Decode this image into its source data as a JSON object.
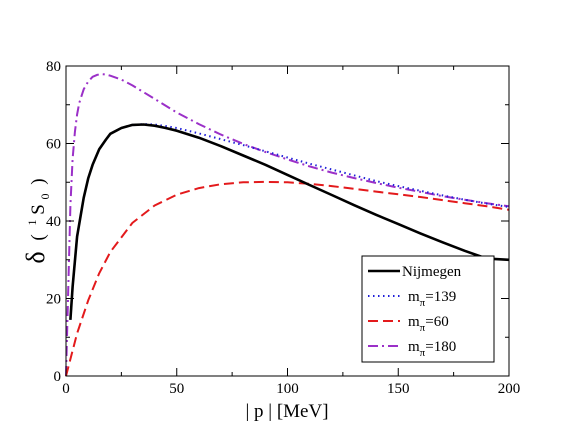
{
  "chart_data": {
    "type": "line",
    "xlabel": "| p |    [MeV]",
    "ylabel": {
      "symbol": "δ",
      "open": "(",
      "sup": "1",
      "letter": "S",
      "sub": "0",
      "close": ")"
    },
    "xlim": [
      0,
      200
    ],
    "ylim": [
      0,
      80
    ],
    "xticks": [
      "0",
      "50",
      "100",
      "150",
      "200"
    ],
    "yticks": [
      "0",
      "20",
      "40",
      "60",
      "80"
    ],
    "grid": false,
    "legend_placement": "bottom-right",
    "series": [
      {
        "name": "Nijmegen",
        "legend": {
          "base": "Nijmegen",
          "sub": ""
        },
        "color": "#000000",
        "style": "solid",
        "x": [
          2,
          3,
          5,
          8,
          10,
          12,
          15,
          18,
          20,
          25,
          30,
          35,
          40,
          45,
          50,
          60,
          70,
          80,
          90,
          100,
          110,
          120,
          130,
          140,
          150,
          160,
          170,
          180,
          190,
          200
        ],
        "y": [
          14.5,
          23,
          36,
          46,
          51,
          54.5,
          58.5,
          61,
          62.5,
          64,
          64.8,
          64.9,
          64.6,
          64,
          63.3,
          61.5,
          59.3,
          56.9,
          54.5,
          51.9,
          49.3,
          46.7,
          44.1,
          41.6,
          39.2,
          36.8,
          34.5,
          32.3,
          30.3,
          30
        ]
      },
      {
        "name": "mπ=139",
        "legend": {
          "base": "m",
          "sub": "π",
          "rest": "=139"
        },
        "color": "#1f1fd8",
        "style": "dotted",
        "x": [
          2,
          3,
          5,
          8,
          10,
          12,
          15,
          18,
          20,
          25,
          30,
          35,
          40,
          45,
          50,
          60,
          70,
          80,
          90,
          100,
          110,
          120,
          130,
          140,
          150,
          160,
          170,
          180,
          190,
          200
        ],
        "y": [
          14.5,
          23,
          36,
          46,
          51,
          54.5,
          58.5,
          61,
          62.5,
          64,
          64.8,
          65,
          64.9,
          64.5,
          64,
          62.6,
          61.1,
          59.6,
          58,
          56.4,
          54.8,
          53.3,
          51.8,
          50.3,
          49,
          47.8,
          46.6,
          45.5,
          44.5,
          43.6
        ]
      },
      {
        "name": "mπ=60",
        "legend": {
          "base": "m",
          "sub": "π",
          "rest": "=60"
        },
        "color": "#e31a1c",
        "style": "dashed",
        "x": [
          0,
          5,
          10,
          15,
          20,
          30,
          40,
          50,
          60,
          70,
          80,
          90,
          100,
          110,
          120,
          130,
          140,
          150,
          160,
          170,
          180,
          190,
          200
        ],
        "y": [
          0,
          11,
          19.5,
          26.5,
          32,
          39.5,
          44,
          46.8,
          48.5,
          49.5,
          50,
          50.1,
          50,
          49.6,
          49,
          48.3,
          47.6,
          46.9,
          46.2,
          45.4,
          44.6,
          43.8,
          42.9
        ]
      },
      {
        "name": "mπ=180",
        "legend": {
          "base": "m",
          "sub": "π",
          "rest": "=180"
        },
        "color": "#9b30c8",
        "style": "dashdot",
        "x": [
          0,
          1,
          2,
          3,
          4,
          5,
          6,
          8,
          10,
          12,
          14,
          16,
          18,
          20,
          25,
          30,
          40,
          50,
          60,
          70,
          80,
          90,
          100,
          110,
          120,
          130,
          140,
          150,
          160,
          170,
          180,
          190,
          200
        ],
        "y": [
          0,
          22,
          44,
          56,
          63,
          67.5,
          70.5,
          74,
          76,
          77.2,
          77.7,
          77.9,
          77.8,
          77.5,
          76.5,
          75,
          71.5,
          68,
          65,
          62.3,
          59.9,
          57.8,
          55.9,
          54.1,
          52.5,
          51.1,
          49.8,
          48.6,
          47.5,
          46.4,
          45.5,
          44.6,
          43.8
        ]
      }
    ]
  }
}
